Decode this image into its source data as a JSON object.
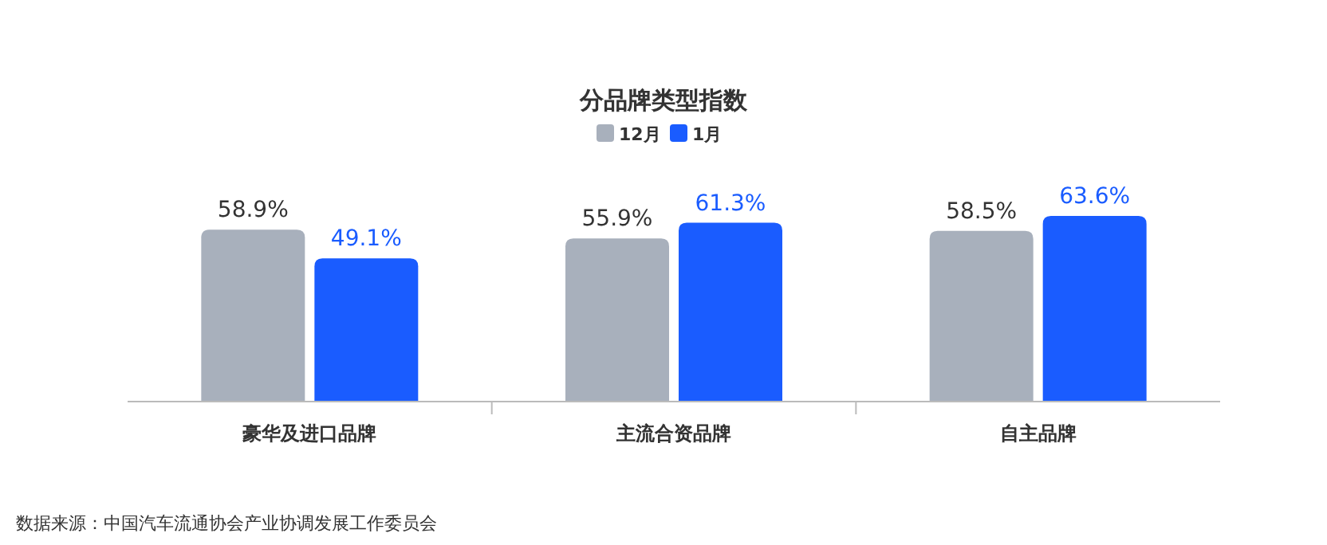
{
  "chart_data": {
    "type": "bar",
    "title": "分品牌类型指数",
    "categories": [
      "豪华及进口品牌",
      "主流合资品牌",
      "自主品牌"
    ],
    "series": [
      {
        "name": "12月",
        "color": "#a8b0bc",
        "values": [
          58.9,
          55.9,
          58.5
        ],
        "value_labels": [
          "58.9%",
          "55.9%",
          "58.5%"
        ]
      },
      {
        "name": "1月",
        "color": "#1a5cff",
        "values": [
          49.1,
          61.3,
          63.6
        ],
        "value_labels": [
          "49.1%",
          "61.3%",
          "63.6%"
        ]
      }
    ],
    "legend": "top",
    "annotations": [
      "数据来源：中国汽车流通协会产业协调发展工作委员会"
    ]
  }
}
